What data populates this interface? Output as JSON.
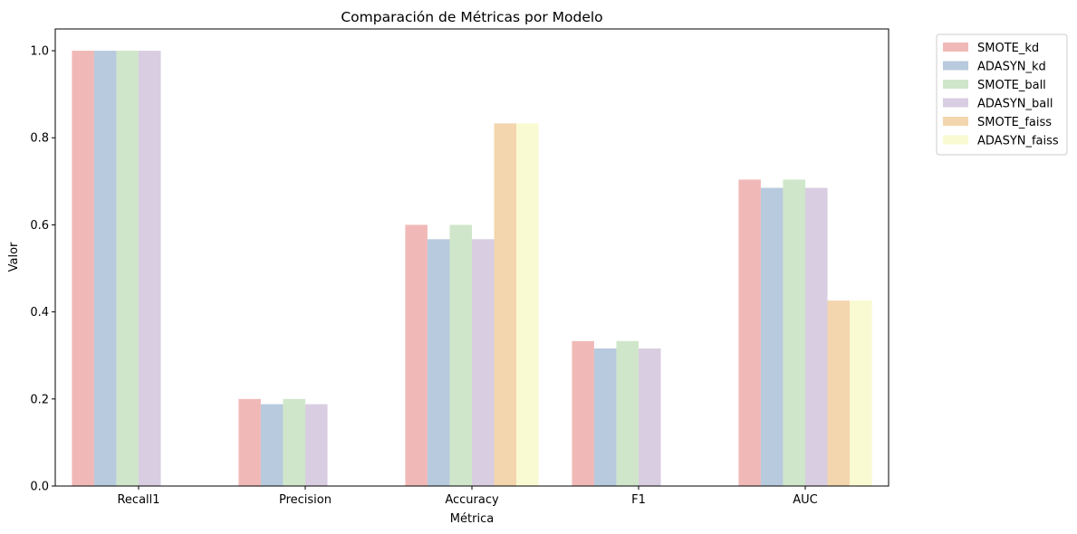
{
  "chart_data": {
    "type": "bar",
    "title": "Comparación de Métricas por Modelo",
    "xlabel": "Métrica",
    "ylabel": "Valor",
    "categories": [
      "Recall1",
      "Precision",
      "Accuracy",
      "F1",
      "AUC"
    ],
    "ylim": [
      0,
      1.05
    ],
    "yticks": [
      "0.0",
      "0.2",
      "0.4",
      "0.6",
      "0.8",
      "1.0"
    ],
    "grid": false,
    "legend_position": "outside-top-right",
    "series": [
      {
        "name": "SMOTE_kd",
        "color": "#f0b9b7",
        "values": [
          1.0,
          0.2,
          0.6,
          0.333,
          0.704
        ]
      },
      {
        "name": "ADASYN_kd",
        "color": "#b8cadd",
        "values": [
          1.0,
          0.188,
          0.567,
          0.316,
          0.685
        ]
      },
      {
        "name": "SMOTE_ball",
        "color": "#d0e6ca",
        "values": [
          1.0,
          0.2,
          0.6,
          0.333,
          0.704
        ]
      },
      {
        "name": "ADASYN_ball",
        "color": "#d9cde2",
        "values": [
          1.0,
          0.188,
          0.567,
          0.316,
          0.685
        ]
      },
      {
        "name": "SMOTE_faiss",
        "color": "#f3d6ad",
        "values": [
          0,
          0,
          0.833,
          0,
          0.426
        ]
      },
      {
        "name": "ADASYN_faiss",
        "color": "#fafad2",
        "values": [
          0,
          0,
          0.833,
          0,
          0.426
        ]
      }
    ]
  }
}
